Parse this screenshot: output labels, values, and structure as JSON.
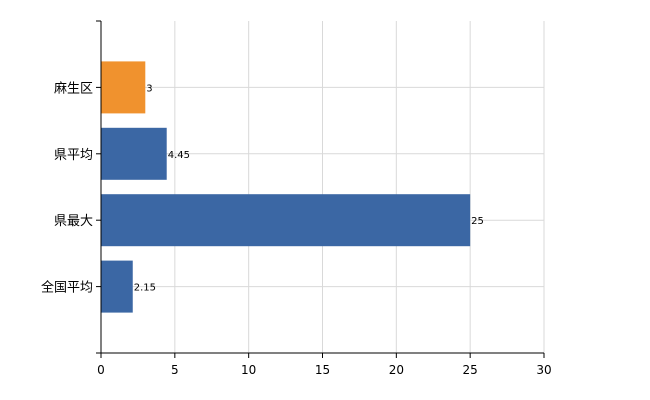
{
  "chart_data": {
    "type": "bar",
    "orientation": "horizontal",
    "categories": [
      "麻生区",
      "県平均",
      "県最大",
      "全国平均"
    ],
    "values": [
      3,
      4.45,
      25,
      2.15
    ],
    "labels": [
      "3",
      "4.45",
      "25",
      "2.15"
    ],
    "colors": [
      "#f0922e",
      "#3b67a4",
      "#3b67a4",
      "#3b67a4"
    ],
    "xlim": [
      0,
      30
    ],
    "xticks": [
      "0",
      "5",
      "10",
      "15",
      "20",
      "25",
      "30"
    ],
    "grid": true,
    "title": "",
    "xlabel": "",
    "ylabel": ""
  }
}
